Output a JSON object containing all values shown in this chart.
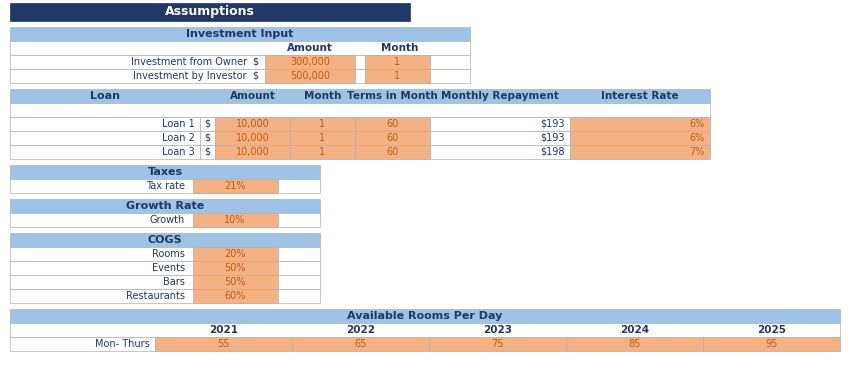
{
  "title": "Assumptions",
  "title_bg": "#1F3864",
  "header_bg": "#9DC3E6",
  "orange_bg": "#F4B183",
  "white_bg": "#FFFFFF",
  "text_dark": "#1F3864",
  "text_orange": "#C55A11",
  "border_color": "#B0B0B0",
  "investment_header": "Investment Input",
  "investment_rows": [
    [
      "Investment from Owner",
      "$",
      "300,000",
      "1"
    ],
    [
      "Investment by Investor",
      "$",
      "500,000",
      "1"
    ]
  ],
  "loan_cols": [
    "Loan",
    "Amount",
    "Month",
    "Terms in Month",
    "Monthly Repayment",
    "Interest Rate"
  ],
  "loan_rows": [
    [
      "Loan 1",
      "$",
      "10,000",
      "1",
      "60",
      "$193",
      "6%"
    ],
    [
      "Loan 2",
      "$",
      "10,000",
      "1",
      "60",
      "$193",
      "6%"
    ],
    [
      "Loan 3",
      "$",
      "10,000",
      "1",
      "60",
      "$198",
      "7%"
    ]
  ],
  "taxes_header": "Taxes",
  "tax_rate_label": "Tax rate",
  "tax_rate_value": "21%",
  "growth_header": "Growth Rate",
  "growth_label": "Growth",
  "growth_value": "10%",
  "cogs_header": "COGS",
  "cogs_rows": [
    [
      "Rooms",
      "20%"
    ],
    [
      "Events",
      "50%"
    ],
    [
      "Bars",
      "50%"
    ],
    [
      "Restaurants",
      "60%"
    ]
  ],
  "rooms_header": "Available Rooms Per Day",
  "rooms_years": [
    "2021",
    "2022",
    "2023",
    "2024",
    "2025"
  ],
  "rooms_rows": [
    [
      "Mon- Thurs",
      "55",
      "65",
      "75",
      "85",
      "95"
    ]
  ],
  "fig_w": 850,
  "fig_h": 379
}
